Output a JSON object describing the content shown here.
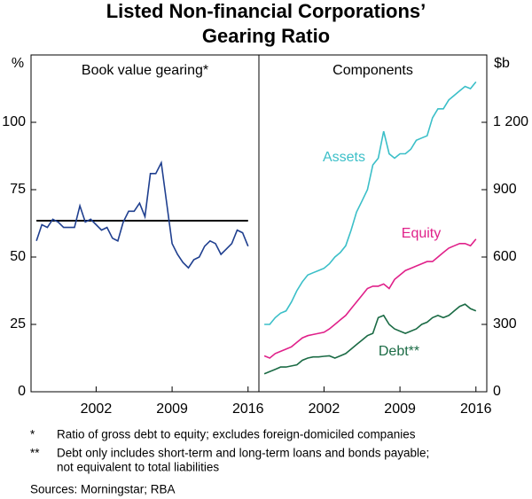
{
  "title": [
    "Listed Non-financial Corporations’",
    "Gearing Ratio"
  ],
  "chart_data": [
    {
      "type": "line",
      "panel_title": "Book value gearing*",
      "unit": "%",
      "x": [
        1996.5,
        1997,
        1997.5,
        1998,
        1998.5,
        1999,
        1999.5,
        2000,
        2000.5,
        2001,
        2001.5,
        2002,
        2002.5,
        2003,
        2003.5,
        2004,
        2004.5,
        2005,
        2005.5,
        2006,
        2006.5,
        2007,
        2007.5,
        2008,
        2008.5,
        2009,
        2009.5,
        2010,
        2010.5,
        2011,
        2011.5,
        2012,
        2012.5,
        2013,
        2013.5,
        2014,
        2014.5,
        2015,
        2015.5,
        2016
      ],
      "xlim": [
        1996,
        2017
      ],
      "xticks": [
        2002,
        2009,
        2016
      ],
      "ylim": [
        0,
        125
      ],
      "yticks": [
        0,
        25,
        50,
        75,
        100
      ],
      "axis_side": "left",
      "reference_line": 63.5,
      "reference_color": "#000000",
      "series": [
        {
          "name": null,
          "color": "#1f3f8f",
          "values": [
            56,
            62,
            61,
            64,
            63,
            61,
            61,
            61,
            69,
            63,
            64,
            62,
            60,
            61,
            57,
            56,
            63,
            67,
            67,
            70,
            65,
            81,
            81,
            85,
            70,
            55,
            51,
            48,
            46,
            49,
            50,
            54,
            56,
            55,
            51,
            53,
            55,
            60,
            59,
            54
          ]
        }
      ]
    },
    {
      "type": "line",
      "panel_title": "Components",
      "unit": "$b",
      "x": [
        1996.5,
        1997,
        1997.5,
        1998,
        1998.5,
        1999,
        1999.5,
        2000,
        2000.5,
        2001,
        2001.5,
        2002,
        2002.5,
        2003,
        2003.5,
        2004,
        2004.5,
        2005,
        2005.5,
        2006,
        2006.5,
        2007,
        2007.5,
        2008,
        2008.5,
        2009,
        2009.5,
        2010,
        2010.5,
        2011,
        2011.5,
        2012,
        2012.5,
        2013,
        2013.5,
        2014,
        2014.5,
        2015,
        2015.5,
        2016
      ],
      "xlim": [
        1996,
        2017
      ],
      "xticks": [
        2002,
        2009,
        2016
      ],
      "ylim": [
        0,
        1500
      ],
      "yticks": [
        0,
        300,
        600,
        900,
        {
          "value": 1200,
          "label": "1 200"
        }
      ],
      "axis_side": "right",
      "series": [
        {
          "name": "Assets",
          "color": "#3bbfc8",
          "values": [
            300,
            300,
            330,
            350,
            360,
            400,
            450,
            490,
            520,
            530,
            540,
            550,
            570,
            600,
            620,
            650,
            720,
            800,
            850,
            900,
            1010,
            1040,
            1160,
            1060,
            1040,
            1060,
            1060,
            1080,
            1120,
            1130,
            1140,
            1220,
            1260,
            1260,
            1300,
            1320,
            1340,
            1360,
            1350,
            1380
          ]
        },
        {
          "name": "Equity",
          "color": "#e0218a",
          "values": [
            160,
            150,
            170,
            180,
            190,
            200,
            220,
            240,
            250,
            255,
            260,
            265,
            280,
            300,
            320,
            340,
            370,
            400,
            430,
            460,
            470,
            470,
            480,
            460,
            500,
            520,
            540,
            550,
            560,
            570,
            580,
            580,
            600,
            620,
            640,
            650,
            660,
            660,
            650,
            680
          ]
        },
        {
          "name": "Debt**",
          "color": "#1b6b45",
          "values": [
            80,
            90,
            100,
            110,
            110,
            115,
            120,
            140,
            150,
            155,
            155,
            158,
            160,
            150,
            160,
            170,
            190,
            210,
            230,
            250,
            260,
            330,
            340,
            300,
            280,
            270,
            260,
            270,
            280,
            300,
            310,
            330,
            340,
            330,
            340,
            360,
            380,
            390,
            370,
            360
          ]
        }
      ]
    }
  ],
  "footnotes": [
    {
      "marker": "*",
      "lines": [
        "Ratio of gross debt to equity; excludes foreign-domiciled companies"
      ]
    },
    {
      "marker": "**",
      "lines": [
        "Debt only includes short-term and long-term loans and bonds payable;",
        "not equivalent to total liabilities"
      ]
    }
  ],
  "sources": "Sources: Morningstar; RBA"
}
